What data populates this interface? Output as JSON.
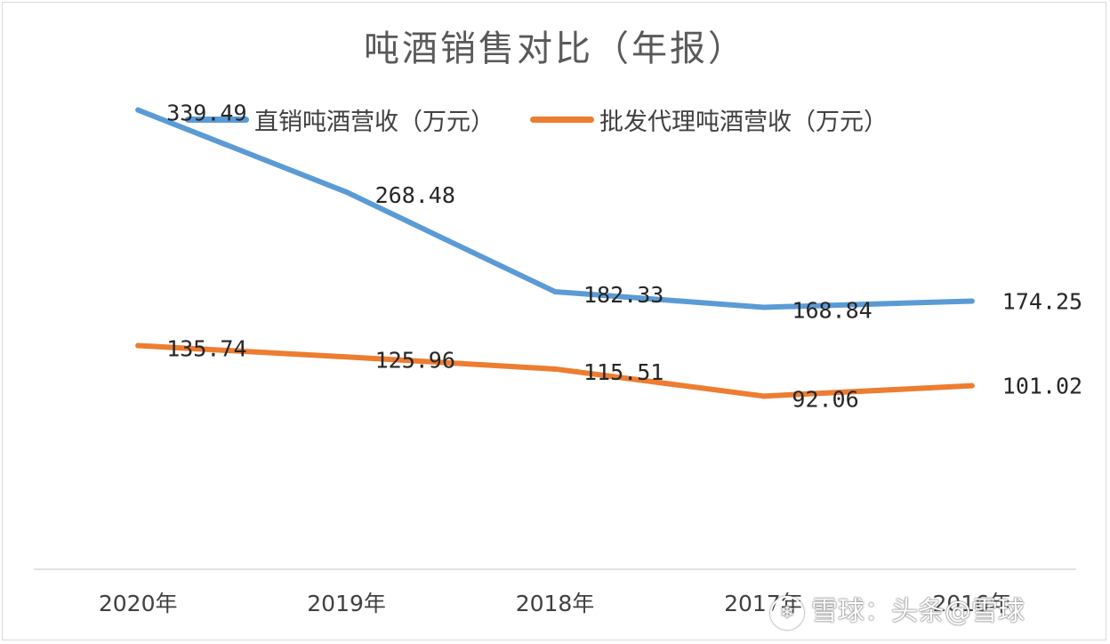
{
  "chart_data": {
    "type": "line",
    "title": "吨酒销售对比（年报）",
    "categories": [
      "2020年",
      "2019年",
      "2018年",
      "2017年",
      "2016年"
    ],
    "series": [
      {
        "name": "直销吨酒营收（万元）",
        "color": "#5b9bd5",
        "values": [
          339.49,
          268.48,
          182.33,
          168.84,
          174.25
        ]
      },
      {
        "name": "批发代理吨酒营收（万元）",
        "color": "#ed7d31",
        "values": [
          135.74,
          125.96,
          115.51,
          92.06,
          101.02
        ]
      }
    ],
    "data_labels": {
      "direct": [
        "339.49",
        "268.48",
        "182.33",
        "168.84",
        "174.25"
      ],
      "wholesale": [
        "135.74",
        "125.96",
        "115.51",
        "92.06",
        "101.02"
      ]
    },
    "xlabel": "",
    "ylabel": "",
    "grid": false,
    "legend_position": "top"
  },
  "watermark": {
    "text": "雪球：头条@雪球",
    "logo_icon": "snowball-logo-icon"
  }
}
